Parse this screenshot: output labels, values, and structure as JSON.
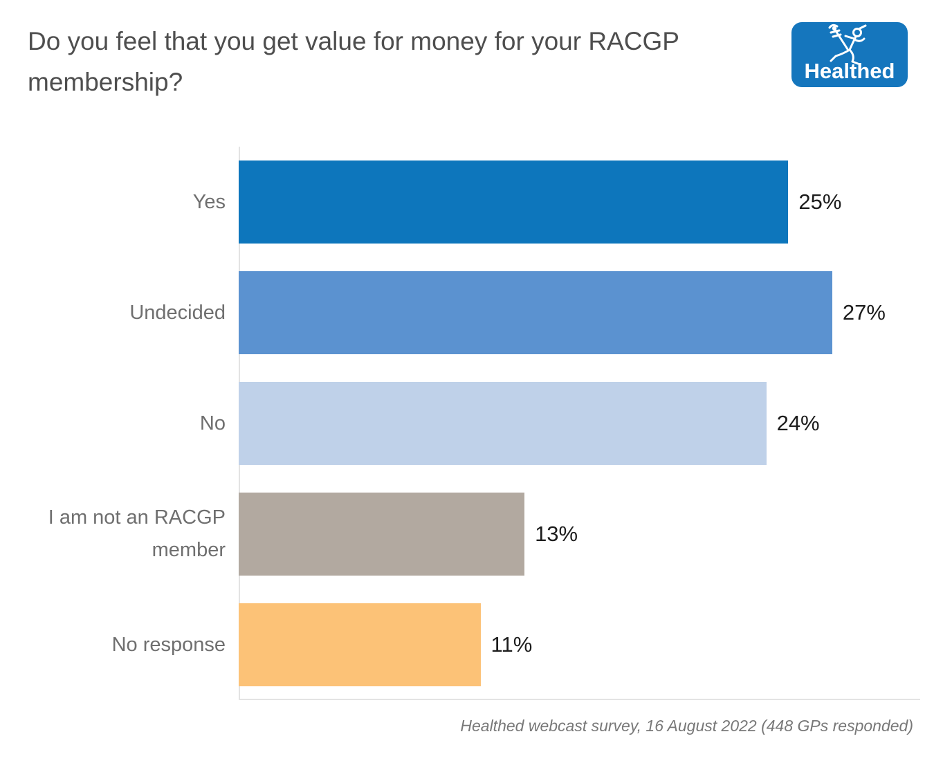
{
  "header": {
    "title": "Do you feel that you get value for money for your RACGP membership?"
  },
  "logo": {
    "wordmark": "Healthed",
    "bg_color": "#1576bd",
    "icon": "mercury-caduceus-icon"
  },
  "chart_data": {
    "type": "bar",
    "orientation": "horizontal",
    "title": "Do you feel that you get value for money for your RACGP membership?",
    "categories": [
      "Yes",
      "Undecided",
      "No",
      "I am not an RACGP member",
      "No response"
    ],
    "values": [
      25,
      27,
      24,
      13,
      11
    ],
    "value_labels": [
      "25%",
      "27%",
      "24%",
      "13%",
      "11%"
    ],
    "bar_colors": [
      "#0d76bc",
      "#5b92d0",
      "#bfd1e9",
      "#b2a9a0",
      "#fcc277"
    ],
    "xlim": [
      0,
      31
    ],
    "grid": "off",
    "legend": "none",
    "source_note": "Healthed webcast survey, 16 August 2022 (448 GPs responded)"
  },
  "footer": {
    "source": "Healthed webcast survey, 16 August 2022 (448 GPs responded)"
  },
  "colors": {
    "background": "#ffffff",
    "title_text": "#4e4e4e",
    "category_label": "#6f6f6f",
    "value_label": "#1c1c1c",
    "axis_line": "#e3e3e3",
    "footer_text": "#787878"
  }
}
